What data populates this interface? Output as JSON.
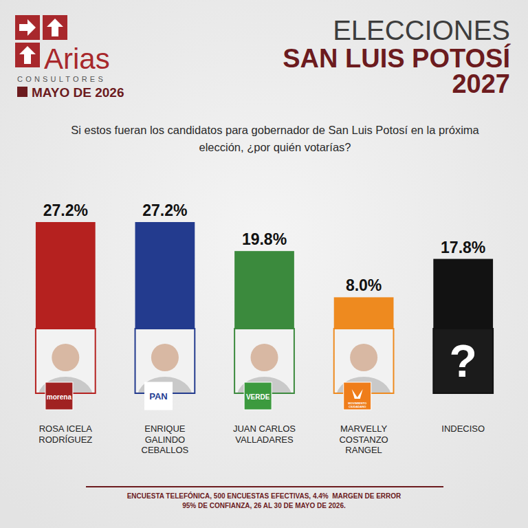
{
  "chart_data": {
    "type": "bar",
    "brand": "Arias",
    "brand_sub": "CONSULTORES",
    "date": "MAYO DE 2026",
    "supertitle": "ELECCIONES",
    "title": "SAN LUIS POTOSÍ",
    "title_year": "2027",
    "subtitle": "Si estos fueran los candidatos para gobernador de San Luis Potosí en la próxima elección, ¿por quién votarías?",
    "categories": [
      "ROSA ICELA RODRÍGUEZ",
      "ENRIQUE GALINDO CEBALLOS",
      "JUAN CARLOS VALLADARES",
      "MARVELLY COSTANZO RANGEL",
      "INDECISO"
    ],
    "values": [
      27.2,
      27.2,
      19.8,
      8.0,
      17.8
    ],
    "value_labels": [
      "27.2%",
      "27.2%",
      "19.8%",
      "8.0%",
      "17.8%"
    ],
    "colors": [
      "#b5211f",
      "#233b8e",
      "#3b8a3d",
      "#ee8a1f",
      "#121212"
    ],
    "party_logos": [
      "morena",
      "PAN",
      "VERDE",
      "MOVIMIENTO CIUDADANO",
      null
    ],
    "placeholder_mark": "?",
    "footer": [
      "ENCUESTA TELEFÓNICA, 500 ENCUESTAS EFECTIVAS, 4.4%  MARGEN DE ERROR",
      "95% DE CONFIANZA, 26 AL 30 DE MAYO DE 2026."
    ],
    "data_labels": true,
    "tick_labels": false,
    "grid": false
  }
}
